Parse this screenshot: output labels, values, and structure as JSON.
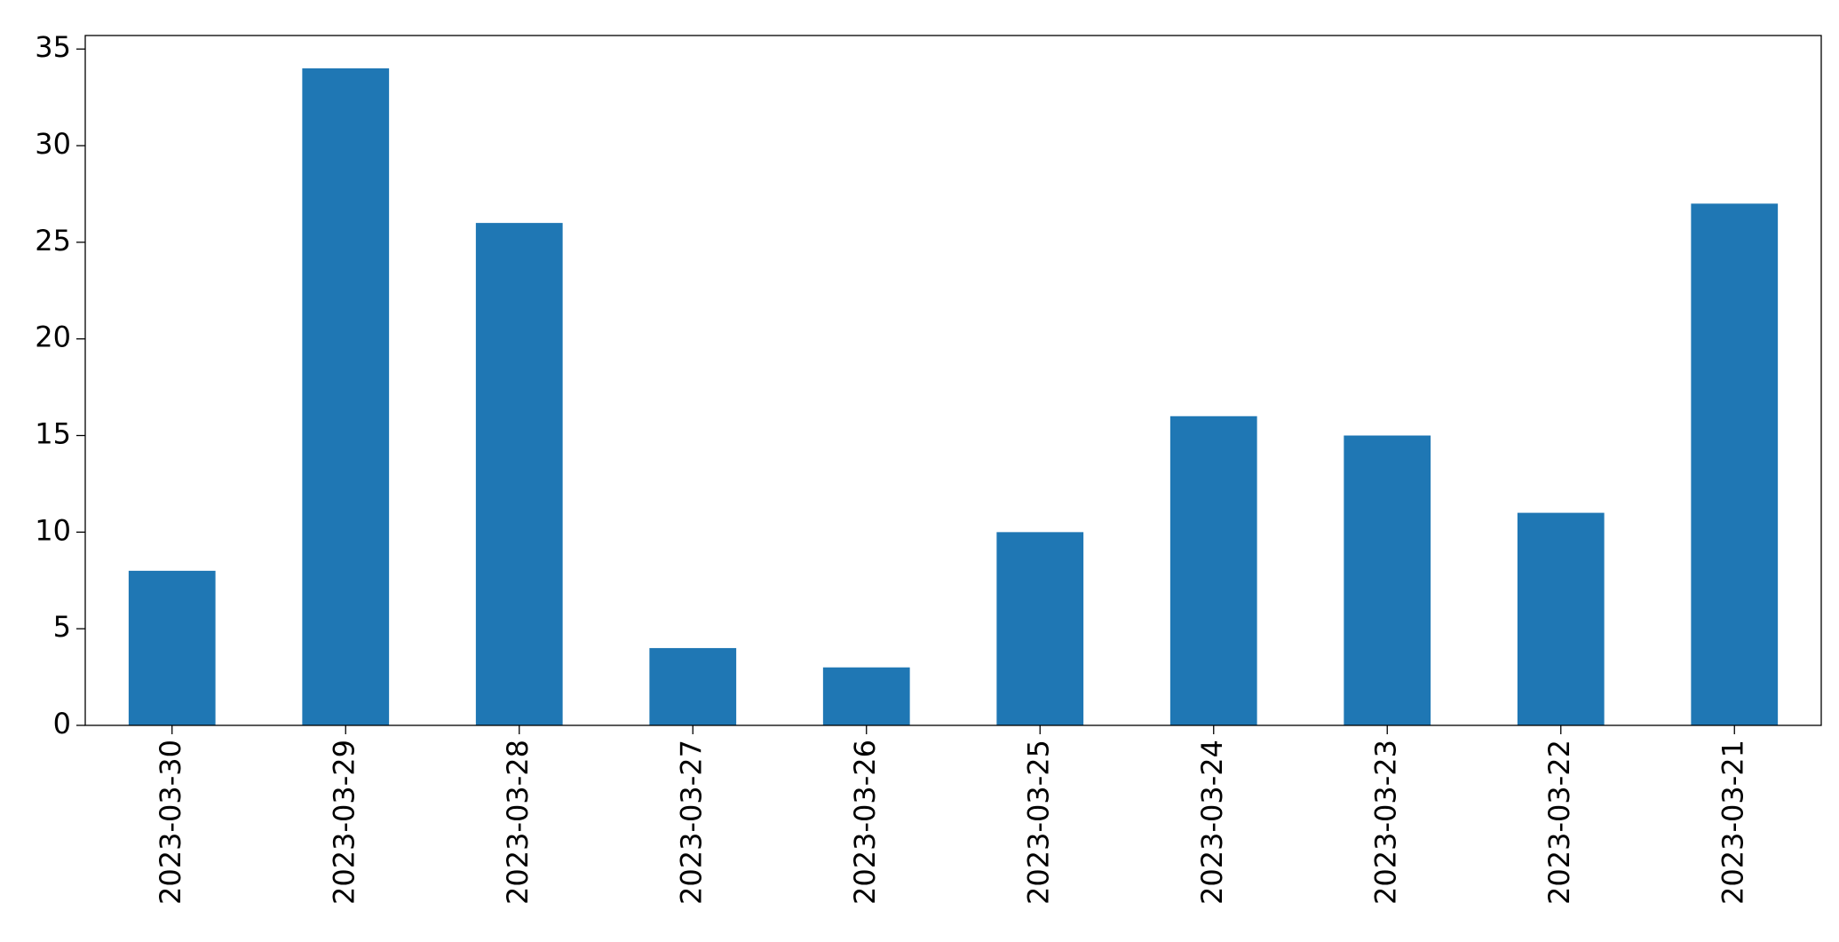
{
  "chart_data": {
    "type": "bar",
    "categories": [
      "2023-03-30",
      "2023-03-29",
      "2023-03-28",
      "2023-03-27",
      "2023-03-26",
      "2023-03-25",
      "2023-03-24",
      "2023-03-23",
      "2023-03-22",
      "2023-03-21"
    ],
    "values": [
      8,
      34,
      26,
      4,
      3,
      10,
      16,
      15,
      11,
      27
    ],
    "color": "#1f77b4",
    "ylim": [
      0,
      35.7
    ],
    "yticks": [
      0,
      5,
      10,
      15,
      20,
      25,
      30,
      35
    ],
    "grid": false
  }
}
